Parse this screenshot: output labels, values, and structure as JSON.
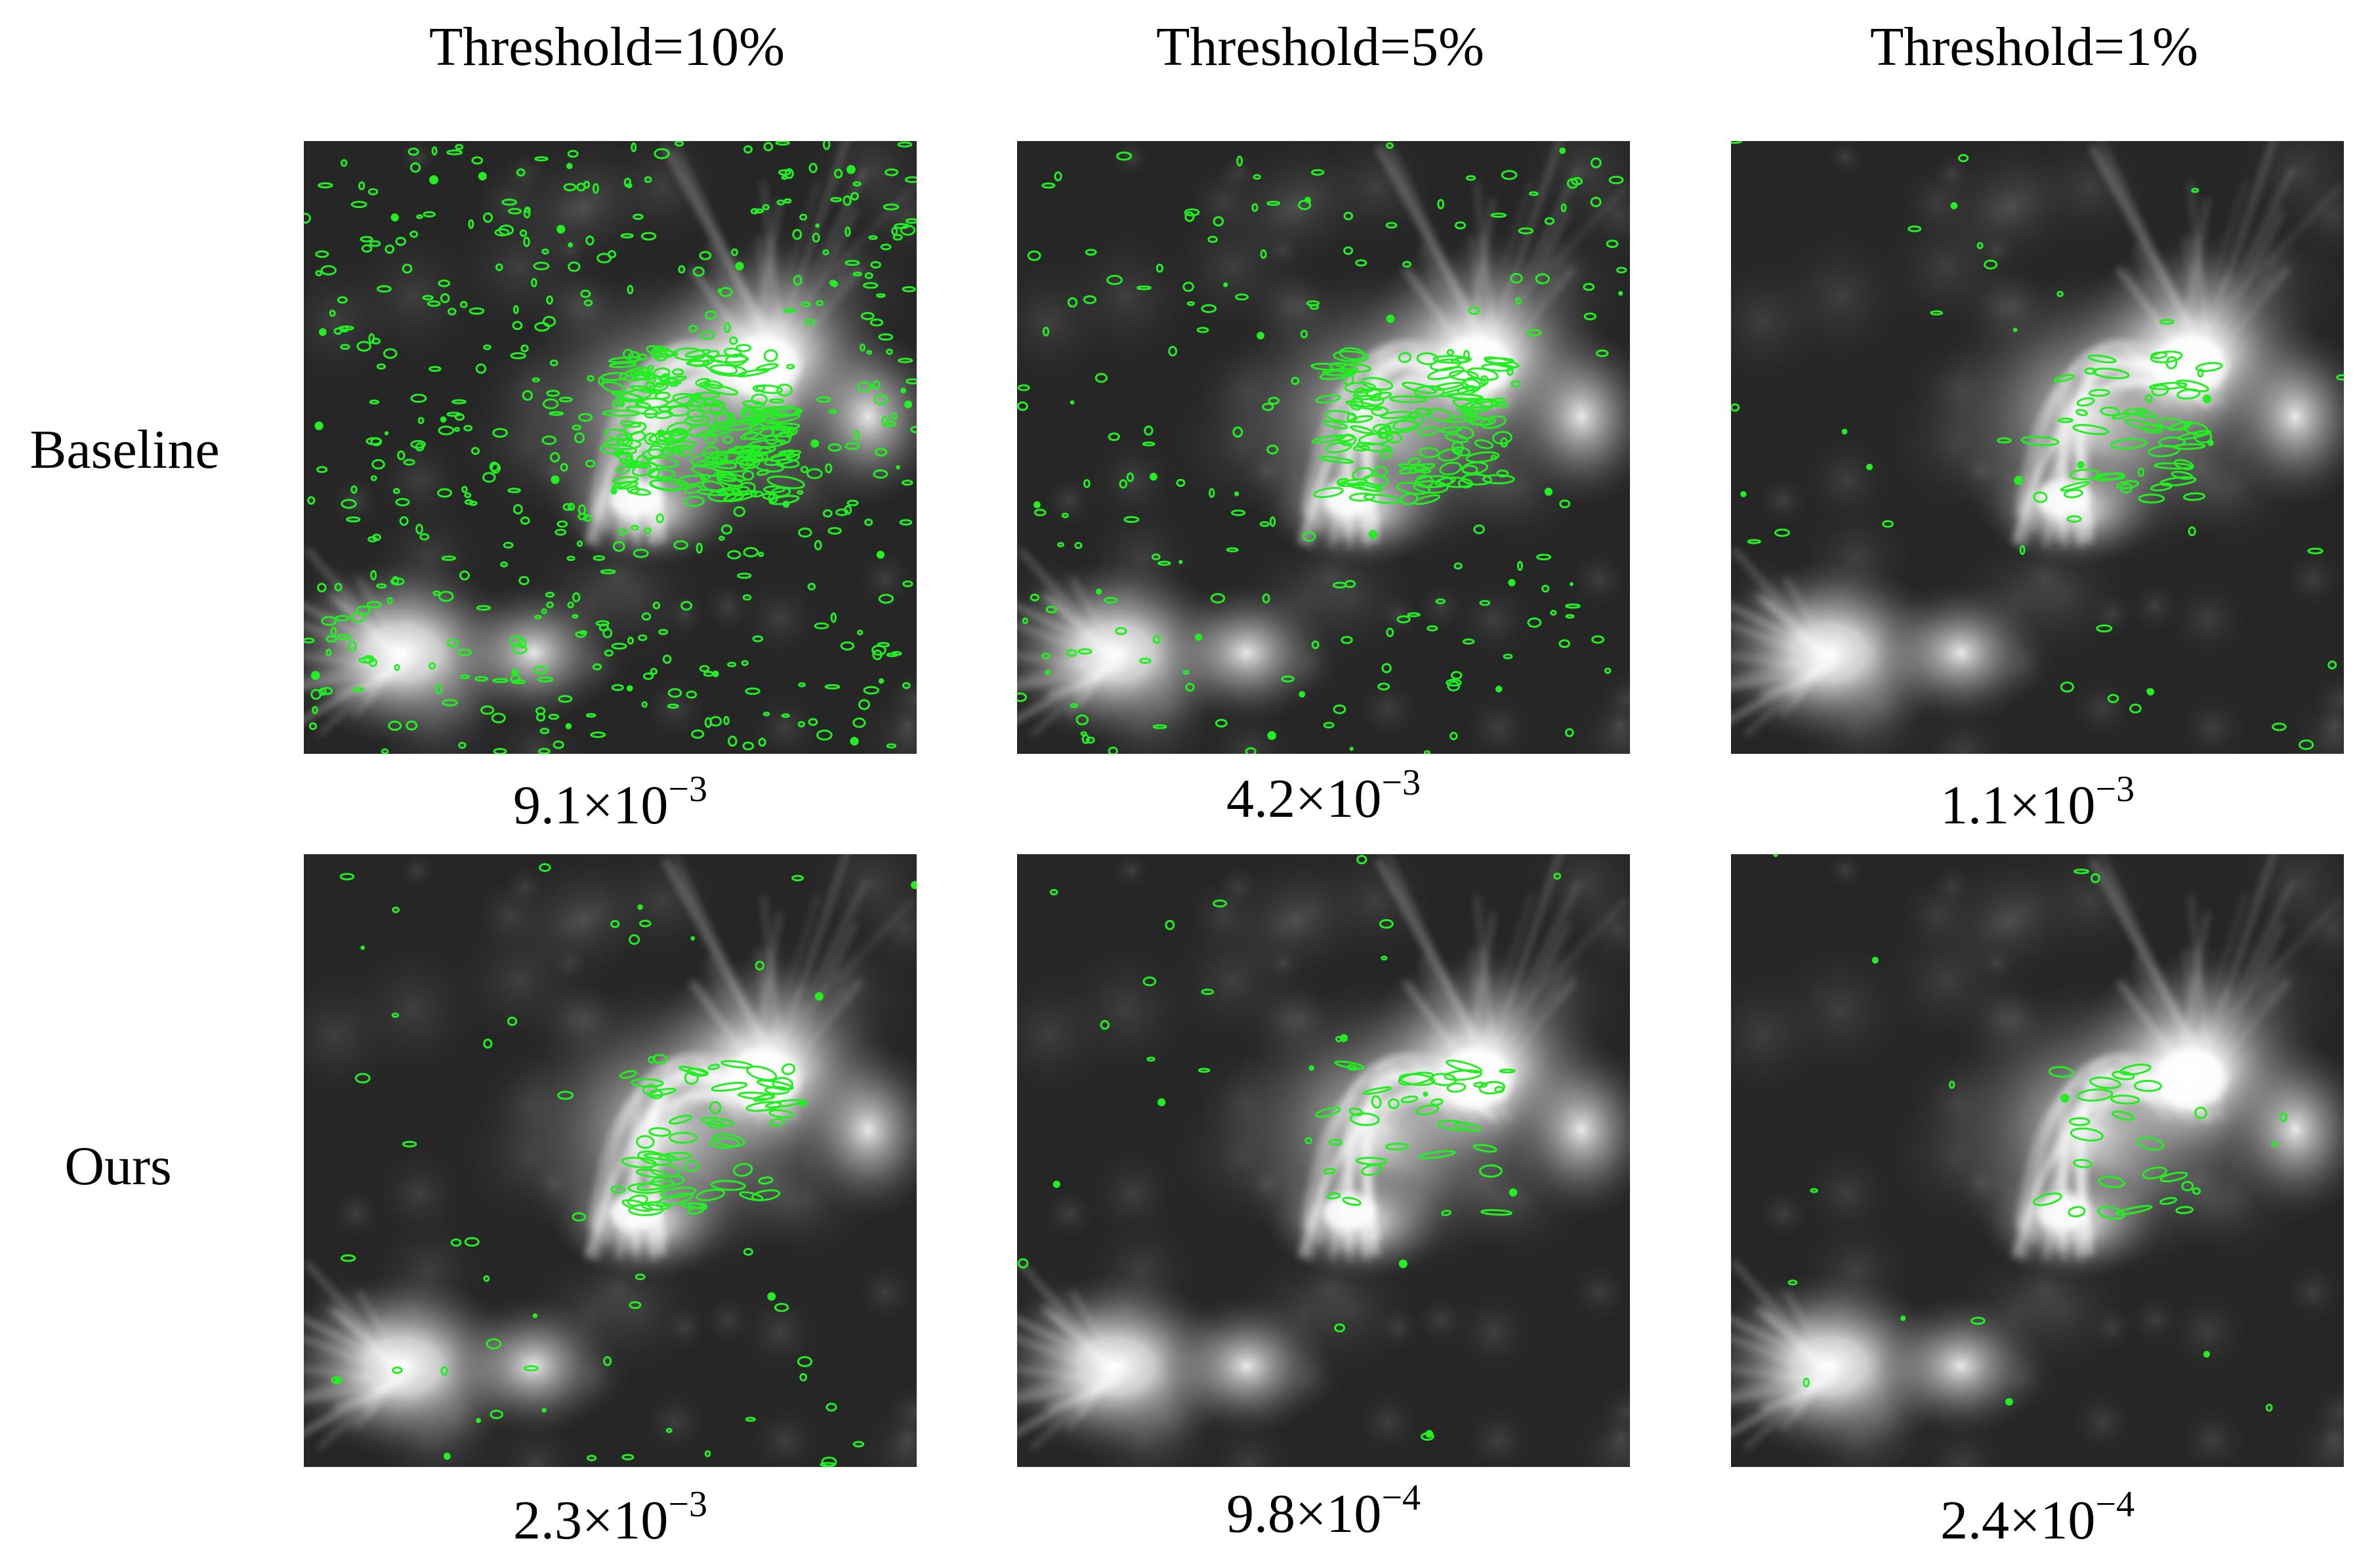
{
  "columns": [
    "Threshold=10%",
    "Threshold=5%",
    "Threshold=1%"
  ],
  "rows": [
    {
      "label": "Baseline",
      "panels": [
        {
          "mantissa": "9.1×10",
          "exponent": "−3"
        },
        {
          "mantissa": "4.2×10",
          "exponent": "−3"
        },
        {
          "mantissa": "1.1×10",
          "exponent": "−3"
        }
      ]
    },
    {
      "label": "Ours",
      "panels": [
        {
          "mantissa": "2.3×10",
          "exponent": "−3"
        },
        {
          "mantissa": "9.8×10",
          "exponent": "−4"
        },
        {
          "mantissa": "2.4×10",
          "exponent": "−4"
        }
      ]
    }
  ],
  "colors": {
    "overlay": "#22ee22",
    "background": "#ffffff"
  }
}
